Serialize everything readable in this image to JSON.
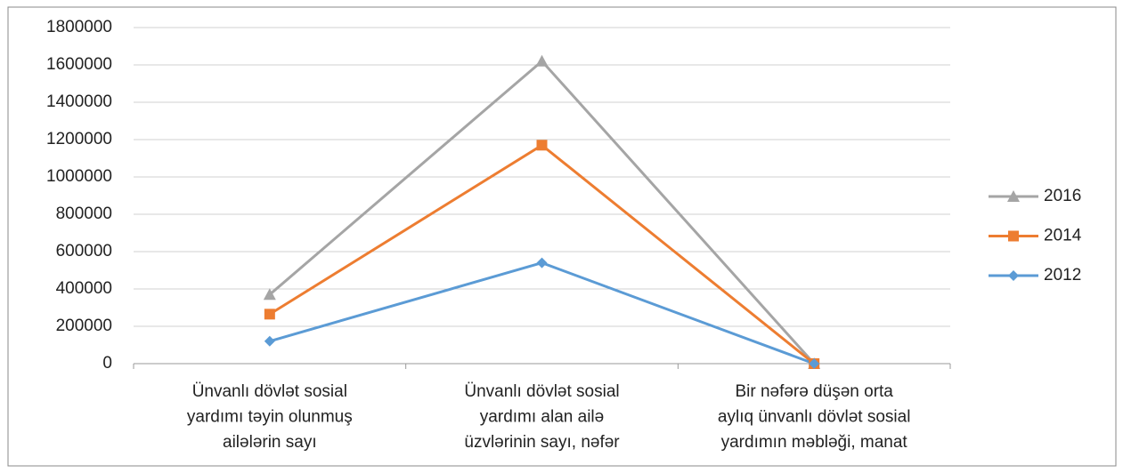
{
  "chart_data": {
    "type": "line",
    "categories": [
      [
        "Ünvanlı dövlət sosial",
        "yardımı təyin  olunmuş",
        "ailələrin sayı"
      ],
      [
        "Ünvanlı dövlət sosial",
        "yardımı alan ailə",
        "üzvlərinin sayı, nəfər"
      ],
      [
        "Bir nəfərə düşən orta",
        "aylıq ünvanlı dövlət sosial",
        "yardımın məbləği, manat"
      ]
    ],
    "series": [
      {
        "name": "2016",
        "color": "#a5a5a5",
        "marker": "triangle",
        "values": [
          370000,
          1620000,
          0
        ]
      },
      {
        "name": "2014",
        "color": "#ed7d31",
        "marker": "square",
        "values": [
          265000,
          1170000,
          0
        ]
      },
      {
        "name": "2012",
        "color": "#5b9bd5",
        "marker": "diamond",
        "values": [
          120000,
          540000,
          0
        ]
      }
    ],
    "ylim": [
      0,
      1800000
    ],
    "yticks": [
      0,
      200000,
      400000,
      600000,
      800000,
      1000000,
      1200000,
      1400000,
      1600000,
      1800000
    ],
    "grid": true,
    "legend": "right"
  }
}
